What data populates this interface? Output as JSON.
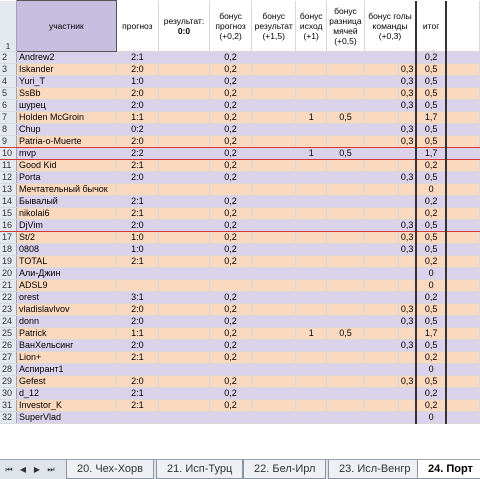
{
  "headers": {
    "row_num": "1",
    "name": "участник",
    "prognoz": "прогноз",
    "result_label": "результат:",
    "result_value": "0:0",
    "bonus_prognoz": "бонус прогноз (+0,2)",
    "bonus_result": "бонус результат (+1,5)",
    "bonus_ishod": "бонус исход (+1)",
    "bonus_raznica": "бонус разница мячей (+0,5)",
    "bonus_goly": "бонус голы команды (+0,3)",
    "itog": "итог"
  },
  "rows": [
    {
      "n": "2",
      "name": "Andrew2",
      "p": "2:1",
      "bp": "0,2",
      "br": "",
      "bi": "",
      "bz": "",
      "bg": "",
      "t": "0,2",
      "c": "lav"
    },
    {
      "n": "3",
      "name": "Iskander",
      "p": "2:0",
      "bp": "0,2",
      "br": "",
      "bi": "",
      "bz": "",
      "bg": "0,3",
      "t": "0,5",
      "c": "pch"
    },
    {
      "n": "4",
      "name": "Yuri_T",
      "p": "1:0",
      "bp": "0,2",
      "br": "",
      "bi": "",
      "bz": "",
      "bg": "0,3",
      "t": "0,5",
      "c": "lav"
    },
    {
      "n": "5",
      "name": "SsBb",
      "p": "2:0",
      "bp": "0,2",
      "br": "",
      "bi": "",
      "bz": "",
      "bg": "0,3",
      "t": "0,5",
      "c": "pch"
    },
    {
      "n": "6",
      "name": "шурец",
      "p": "2:0",
      "bp": "0,2",
      "br": "",
      "bi": "",
      "bz": "",
      "bg": "0,3",
      "t": "0,5",
      "c": "lav"
    },
    {
      "n": "7",
      "name": "Holden McGroin",
      "p": "1:1",
      "bp": "0,2",
      "br": "",
      "bi": "1",
      "bz": "0,5",
      "bg": "",
      "t": "1,7",
      "c": "pch"
    },
    {
      "n": "8",
      "name": "Chup",
      "p": "0:2",
      "bp": "0,2",
      "br": "",
      "bi": "",
      "bz": "",
      "bg": "0,3",
      "t": "0,5",
      "c": "lav"
    },
    {
      "n": "9",
      "name": "Patria-o-Muerte",
      "p": "2:0",
      "bp": "0,2",
      "br": "",
      "bi": "",
      "bz": "",
      "bg": "0,3",
      "t": "0,5",
      "c": "pch",
      "red": true
    },
    {
      "n": "10",
      "name": "mvp",
      "p": "2:2",
      "bp": "0,2",
      "br": "",
      "bi": "1",
      "bz": "0,5",
      "bg": "",
      "t": "1,7",
      "c": "lav",
      "red": true
    },
    {
      "n": "11",
      "name": "Good Kid",
      "p": "2:1",
      "bp": "0,2",
      "br": "",
      "bi": "",
      "bz": "",
      "bg": "",
      "t": "0,2",
      "c": "pch"
    },
    {
      "n": "12",
      "name": "Porta",
      "p": "2:0",
      "bp": "0,2",
      "br": "",
      "bi": "",
      "bz": "",
      "bg": "0,3",
      "t": "0,5",
      "c": "lav"
    },
    {
      "n": "13",
      "name": "Мечтательный бычок",
      "p": "",
      "bp": "",
      "br": "",
      "bi": "",
      "bz": "",
      "bg": "",
      "t": "0",
      "c": "pch"
    },
    {
      "n": "14",
      "name": "Бывалый",
      "p": "2:1",
      "bp": "0,2",
      "br": "",
      "bi": "",
      "bz": "",
      "bg": "",
      "t": "0,2",
      "c": "lav"
    },
    {
      "n": "15",
      "name": "nikolai6",
      "p": "2:1",
      "bp": "0,2",
      "br": "",
      "bi": "",
      "bz": "",
      "bg": "",
      "t": "0,2",
      "c": "pch"
    },
    {
      "n": "16",
      "name": "DjVim",
      "p": "2:0",
      "bp": "0,2",
      "br": "",
      "bi": "",
      "bz": "",
      "bg": "0,3",
      "t": "0,5",
      "c": "lav",
      "red": true
    },
    {
      "n": "17",
      "name": "St/2",
      "p": "1:0",
      "bp": "0,2",
      "br": "",
      "bi": "",
      "bz": "",
      "bg": "0,3",
      "t": "0,5",
      "c": "pch"
    },
    {
      "n": "18",
      "name": "0808",
      "p": "1:0",
      "bp": "0,2",
      "br": "",
      "bi": "",
      "bz": "",
      "bg": "0,3",
      "t": "0,5",
      "c": "lav"
    },
    {
      "n": "19",
      "name": "TOTAL",
      "p": "2:1",
      "bp": "0,2",
      "br": "",
      "bi": "",
      "bz": "",
      "bg": "",
      "t": "0,2",
      "c": "pch"
    },
    {
      "n": "20",
      "name": "Али-Джин",
      "p": "",
      "bp": "",
      "br": "",
      "bi": "",
      "bz": "",
      "bg": "",
      "t": "0",
      "c": "lav"
    },
    {
      "n": "21",
      "name": "ADSL9",
      "p": "",
      "bp": "",
      "br": "",
      "bi": "",
      "bz": "",
      "bg": "",
      "t": "0",
      "c": "pch"
    },
    {
      "n": "22",
      "name": "orest",
      "p": "3:1",
      "bp": "0,2",
      "br": "",
      "bi": "",
      "bz": "",
      "bg": "",
      "t": "0,2",
      "c": "lav"
    },
    {
      "n": "23",
      "name": "vladislavlvov",
      "p": "2:0",
      "bp": "0,2",
      "br": "",
      "bi": "",
      "bz": "",
      "bg": "0,3",
      "t": "0,5",
      "c": "pch"
    },
    {
      "n": "24",
      "name": "donn",
      "p": "2:0",
      "bp": "0,2",
      "br": "",
      "bi": "",
      "bz": "",
      "bg": "0,3",
      "t": "0,5",
      "c": "lav"
    },
    {
      "n": "25",
      "name": "Patrick",
      "p": "1:1",
      "bp": "0,2",
      "br": "",
      "bi": "1",
      "bz": "0,5",
      "bg": "",
      "t": "1,7",
      "c": "pch"
    },
    {
      "n": "26",
      "name": "ВанХельсинг",
      "p": "2:0",
      "bp": "0,2",
      "br": "",
      "bi": "",
      "bz": "",
      "bg": "0,3",
      "t": "0,5",
      "c": "lav"
    },
    {
      "n": "27",
      "name": "Lion+",
      "p": "2:1",
      "bp": "0,2",
      "br": "",
      "bi": "",
      "bz": "",
      "bg": "",
      "t": "0,2",
      "c": "pch"
    },
    {
      "n": "28",
      "name": "Аспирант1",
      "p": "",
      "bp": "",
      "br": "",
      "bi": "",
      "bz": "",
      "bg": "",
      "t": "0",
      "c": "lav"
    },
    {
      "n": "29",
      "name": "Gefest",
      "p": "2:0",
      "bp": "0,2",
      "br": "",
      "bi": "",
      "bz": "",
      "bg": "0,3",
      "t": "0,5",
      "c": "pch"
    },
    {
      "n": "30",
      "name": "d_12",
      "p": "2:1",
      "bp": "0,2",
      "br": "",
      "bi": "",
      "bz": "",
      "bg": "",
      "t": "0,2",
      "c": "lav"
    },
    {
      "n": "31",
      "name": "Investor_K",
      "p": "2:1",
      "bp": "0,2",
      "br": "",
      "bi": "",
      "bz": "",
      "bg": "",
      "t": "0,2",
      "c": "pch"
    },
    {
      "n": "32",
      "name": "SuperVlad",
      "p": "",
      "bp": "",
      "br": "",
      "bi": "",
      "bz": "",
      "bg": "",
      "t": "0",
      "c": "lav"
    }
  ],
  "tabs": {
    "nav_icons": [
      "first-sheet-icon",
      "prev-sheet-icon",
      "next-sheet-icon",
      "last-sheet-icon"
    ],
    "nav_glyphs": [
      "⏮",
      "◀",
      "▶",
      "⏭"
    ],
    "sheets": [
      "20. Чех-Хорв",
      "21. Исп-Турц",
      "22. Бел-Ирл",
      "23. Исл-Венгр",
      "24. Порт"
    ],
    "active_index": 4
  },
  "colors": {
    "lavender": "#d9d2ea",
    "peach": "#fbd9bf",
    "header_name": "#c8bfe0",
    "red_line": "#d0383a"
  }
}
